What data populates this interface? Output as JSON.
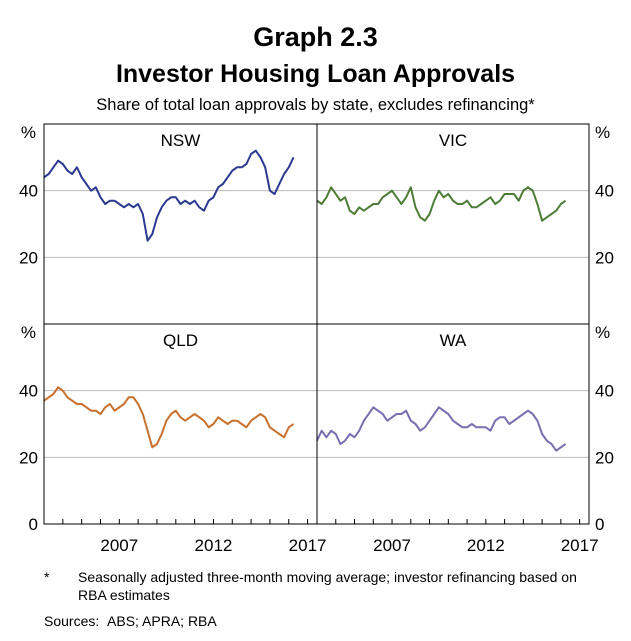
{
  "title": "Graph 2.3",
  "subtitle": "Investor Housing Loan Approvals",
  "description": "Share of total loan approvals by state, excludes refinancing*",
  "footnote_marker": "*",
  "footnote": "Seasonally adjusted three-month moving average; investor refinancing based on RBA estimates",
  "sources": "Sources:  ABS; APRA; RBA",
  "colors": {
    "NSW": "#2b3990",
    "VIC": "#4e7d37",
    "QLD": "#c8712e",
    "WA": "#7b6eb0",
    "grid": "#bbbbbb",
    "axis": "#000000"
  },
  "chart_data": {
    "type": "line",
    "unit_label": "%",
    "ylim": [
      0,
      60
    ],
    "yticks": [
      0,
      20,
      40
    ],
    "xlim": [
      2003,
      2017.5
    ],
    "xticks": [
      2007,
      2012,
      2017
    ],
    "grid": true,
    "panels": [
      {
        "name": "NSW",
        "color_key": "NSW",
        "x": [
          2003.0,
          2003.25,
          2003.5,
          2003.75,
          2004.0,
          2004.25,
          2004.5,
          2004.75,
          2005.0,
          2005.25,
          2005.5,
          2005.75,
          2006.0,
          2006.25,
          2006.5,
          2006.75,
          2007.0,
          2007.25,
          2007.5,
          2007.75,
          2008.0,
          2008.25,
          2008.5,
          2008.75,
          2009.0,
          2009.25,
          2009.5,
          2009.75,
          2010.0,
          2010.25,
          2010.5,
          2010.75,
          2011.0,
          2011.25,
          2011.5,
          2011.75,
          2012.0,
          2012.25,
          2012.5,
          2012.75,
          2013.0,
          2013.25,
          2013.5,
          2013.75,
          2014.0,
          2014.25,
          2014.5,
          2014.75,
          2015.0,
          2015.25,
          2015.5,
          2015.75,
          2016.0,
          2016.25
        ],
        "values": [
          44,
          45,
          47,
          49,
          48,
          46,
          45,
          47,
          44,
          42,
          40,
          41,
          38,
          36,
          37,
          37,
          36,
          35,
          36,
          35,
          36,
          33,
          25,
          27,
          32,
          35,
          37,
          38,
          38,
          36,
          37,
          36,
          37,
          35,
          34,
          37,
          38,
          41,
          42,
          44,
          46,
          47,
          47,
          48,
          51,
          52,
          50,
          47,
          40,
          39,
          42,
          45,
          47,
          50
        ]
      },
      {
        "name": "VIC",
        "color_key": "VIC",
        "x": [
          2003.0,
          2003.25,
          2003.5,
          2003.75,
          2004.0,
          2004.25,
          2004.5,
          2004.75,
          2005.0,
          2005.25,
          2005.5,
          2005.75,
          2006.0,
          2006.25,
          2006.5,
          2006.75,
          2007.0,
          2007.25,
          2007.5,
          2007.75,
          2008.0,
          2008.25,
          2008.5,
          2008.75,
          2009.0,
          2009.25,
          2009.5,
          2009.75,
          2010.0,
          2010.25,
          2010.5,
          2010.75,
          2011.0,
          2011.25,
          2011.5,
          2011.75,
          2012.0,
          2012.25,
          2012.5,
          2012.75,
          2013.0,
          2013.25,
          2013.5,
          2013.75,
          2014.0,
          2014.25,
          2014.5,
          2014.75,
          2015.0,
          2015.25,
          2015.5,
          2015.75,
          2016.0,
          2016.25
        ],
        "values": [
          37,
          36,
          38,
          41,
          39,
          37,
          38,
          34,
          33,
          35,
          34,
          35,
          36,
          36,
          38,
          39,
          40,
          38,
          36,
          38,
          41,
          35,
          32,
          31,
          33,
          37,
          40,
          38,
          39,
          37,
          36,
          36,
          37,
          35,
          35,
          36,
          37,
          38,
          36,
          37,
          39,
          39,
          39,
          37,
          40,
          41,
          40,
          36,
          31,
          32,
          33,
          34,
          36,
          37
        ]
      },
      {
        "name": "QLD",
        "color_key": "QLD",
        "x": [
          2003.0,
          2003.25,
          2003.5,
          2003.75,
          2004.0,
          2004.25,
          2004.5,
          2004.75,
          2005.0,
          2005.25,
          2005.5,
          2005.75,
          2006.0,
          2006.25,
          2006.5,
          2006.75,
          2007.0,
          2007.25,
          2007.5,
          2007.75,
          2008.0,
          2008.25,
          2008.5,
          2008.75,
          2009.0,
          2009.25,
          2009.5,
          2009.75,
          2010.0,
          2010.25,
          2010.5,
          2010.75,
          2011.0,
          2011.25,
          2011.5,
          2011.75,
          2012.0,
          2012.25,
          2012.5,
          2012.75,
          2013.0,
          2013.25,
          2013.5,
          2013.75,
          2014.0,
          2014.25,
          2014.5,
          2014.75,
          2015.0,
          2015.25,
          2015.5,
          2015.75,
          2016.0,
          2016.25
        ],
        "values": [
          37,
          38,
          39,
          41,
          40,
          38,
          37,
          36,
          36,
          35,
          34,
          34,
          33,
          35,
          36,
          34,
          35,
          36,
          38,
          38,
          36,
          33,
          28,
          23,
          24,
          27,
          31,
          33,
          34,
          32,
          31,
          32,
          33,
          32,
          31,
          29,
          30,
          32,
          31,
          30,
          31,
          31,
          30,
          29,
          31,
          32,
          33,
          32,
          29,
          28,
          27,
          26,
          29,
          30
        ]
      },
      {
        "name": "WA",
        "color_key": "WA",
        "x": [
          2003.0,
          2003.25,
          2003.5,
          2003.75,
          2004.0,
          2004.25,
          2004.5,
          2004.75,
          2005.0,
          2005.25,
          2005.5,
          2005.75,
          2006.0,
          2006.25,
          2006.5,
          2006.75,
          2007.0,
          2007.25,
          2007.5,
          2007.75,
          2008.0,
          2008.25,
          2008.5,
          2008.75,
          2009.0,
          2009.25,
          2009.5,
          2009.75,
          2010.0,
          2010.25,
          2010.5,
          2010.75,
          2011.0,
          2011.25,
          2011.5,
          2011.75,
          2012.0,
          2012.25,
          2012.5,
          2012.75,
          2013.0,
          2013.25,
          2013.5,
          2013.75,
          2014.0,
          2014.25,
          2014.5,
          2014.75,
          2015.0,
          2015.25,
          2015.5,
          2015.75,
          2016.0,
          2016.25
        ],
        "values": [
          25,
          28,
          26,
          28,
          27,
          24,
          25,
          27,
          26,
          28,
          31,
          33,
          35,
          34,
          33,
          31,
          32,
          33,
          33,
          34,
          31,
          30,
          28,
          29,
          31,
          33,
          35,
          34,
          33,
          31,
          30,
          29,
          29,
          30,
          29,
          29,
          29,
          28,
          31,
          32,
          32,
          30,
          31,
          32,
          33,
          34,
          33,
          31,
          27,
          25,
          24,
          22,
          23,
          24
        ]
      }
    ]
  }
}
